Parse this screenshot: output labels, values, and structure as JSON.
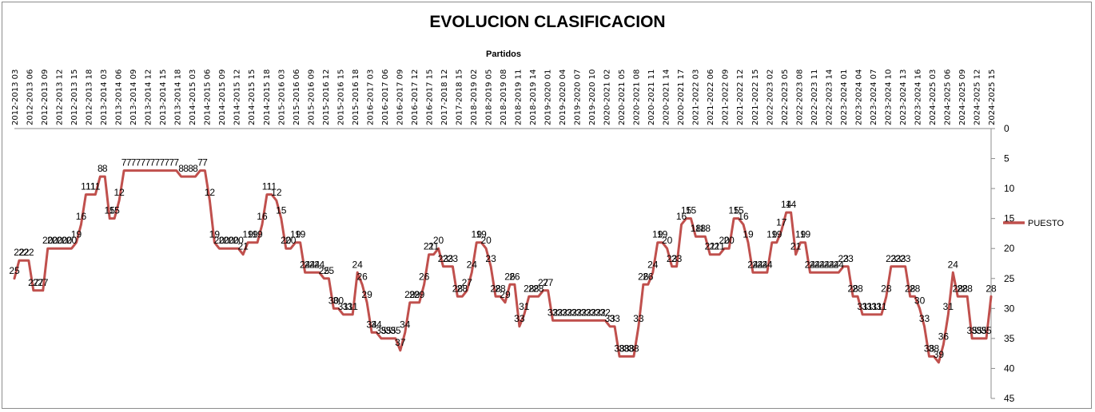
{
  "chart_data": {
    "type": "line",
    "title": "EVOLUCION CLASIFICACION",
    "xlabel": "Partidos",
    "ylabel": "",
    "ylim": [
      0,
      45
    ],
    "y_reversed": true,
    "y_ticks": [
      0,
      5,
      10,
      15,
      20,
      25,
      30,
      35,
      40,
      45
    ],
    "y_axis_position": "right",
    "x_axis_position": "top",
    "grid": false,
    "legend": "right",
    "series": [
      {
        "name": "PUESTO",
        "color": "#c0504d",
        "values": [
          25,
          22,
          22,
          22,
          27,
          27,
          27,
          20,
          20,
          20,
          20,
          20,
          20,
          19,
          16,
          11,
          11,
          11,
          8,
          8,
          15,
          15,
          12,
          7,
          7,
          7,
          7,
          7,
          7,
          7,
          7,
          7,
          7,
          7,
          7,
          8,
          8,
          8,
          8,
          7,
          7,
          12,
          19,
          20,
          20,
          20,
          20,
          20,
          21,
          19,
          19,
          19,
          16,
          11,
          11,
          12,
          15,
          20,
          20,
          19,
          19,
          24,
          24,
          24,
          24,
          25,
          25,
          30,
          30,
          31,
          31,
          31,
          24,
          26,
          29,
          34,
          34,
          35,
          35,
          35,
          35,
          37,
          34,
          29,
          29,
          29,
          26,
          21,
          21,
          20,
          23,
          23,
          23,
          28,
          28,
          27,
          24,
          19,
          19,
          20,
          23,
          28,
          28,
          29,
          26,
          26,
          33,
          31,
          28,
          28,
          28,
          27,
          27,
          32,
          32,
          32,
          32,
          32,
          32,
          32,
          32,
          32,
          32,
          32,
          32,
          33,
          33,
          38,
          38,
          38,
          38,
          33,
          26,
          26,
          24,
          19,
          19,
          20,
          23,
          23,
          16,
          15,
          15,
          18,
          18,
          18,
          21,
          21,
          21,
          20,
          20,
          15,
          15,
          16,
          19,
          24,
          24,
          24,
          24,
          19,
          19,
          17,
          14,
          14,
          21,
          19,
          19,
          24,
          24,
          24,
          24,
          24,
          24,
          24,
          23,
          23,
          28,
          28,
          31,
          31,
          31,
          31,
          31,
          28,
          23,
          23,
          23,
          23,
          28,
          28,
          30,
          33,
          38,
          38,
          39,
          36,
          31,
          24,
          28,
          28,
          28,
          35,
          35,
          35,
          35,
          28
        ]
      }
    ],
    "data_labels": [
      "25",
      "22",
      "22",
      "22",
      "27",
      "27",
      "27",
      "20",
      "20",
      "20",
      "20",
      "20",
      "20",
      "19",
      "16",
      "11",
      "11",
      "11",
      "8",
      "8",
      "15",
      "15",
      "12",
      "7",
      "7",
      "7",
      "7",
      "7",
      "7",
      "7",
      "7",
      "7",
      "7",
      "7",
      "7",
      "8",
      "8",
      "8",
      "8",
      "7",
      "7",
      "12",
      "19",
      "20",
      "20",
      "20",
      "20",
      "20",
      "21",
      "19",
      "19",
      "19",
      "16",
      "11",
      "11",
      "12",
      "15",
      "20",
      "20",
      "19",
      "19",
      "24",
      "24",
      "24",
      "24",
      "25",
      "25",
      "30",
      "30",
      "31",
      "31",
      "31",
      "24",
      "26",
      "29",
      "34",
      "34",
      "35",
      "35",
      "35",
      "35",
      "37",
      "34",
      "29",
      "29",
      "29",
      "26",
      "21",
      "21",
      "20",
      "23",
      "23",
      "23",
      "28",
      "28",
      "27",
      "24",
      "19",
      "19",
      "20",
      "23",
      "28",
      "28",
      "29",
      "26",
      "26",
      "33",
      "31",
      "28",
      "28",
      "28",
      "27",
      "27",
      "32",
      "32",
      "32",
      "32",
      "32",
      "32",
      "32",
      "32",
      "32",
      "32",
      "32",
      "32",
      "33",
      "33",
      "38",
      "38",
      "38",
      "38",
      "33",
      "26",
      "26",
      "24",
      "19",
      "19",
      "20",
      "23",
      "23",
      "16",
      "15",
      "15",
      "18",
      "18",
      "18",
      "21",
      "21",
      "21",
      "20",
      "20",
      "15",
      "15",
      "16",
      "19",
      "24",
      "24",
      "24",
      "24",
      "19",
      "19",
      "17",
      "14",
      "14",
      "21",
      "19",
      "19",
      "24",
      "24",
      "24",
      "24",
      "24",
      "24",
      "24",
      "23",
      "23",
      "28",
      "28",
      "31",
      "31",
      "31",
      "31",
      "31",
      "28",
      "23",
      "23",
      "23",
      "23",
      "28",
      "28",
      "30",
      "33",
      "38",
      "38",
      "39",
      "36",
      "31",
      "24",
      "28",
      "28",
      "28",
      "35",
      "35",
      "35",
      "35",
      "28"
    ],
    "x_tick_labels": [
      "2012-2013 03",
      "2012-2013 06",
      "2012-2013 09",
      "2012-2013 12",
      "2012-2013 15",
      "2012-2013 18",
      "2013-2014 03",
      "2013-2014 06",
      "2013-2014 09",
      "2013-2014 12",
      "2013-2014 15",
      "2013-2014 18",
      "2014-2015 03",
      "2014-2015 06",
      "2014-2015 09",
      "2014-2015 12",
      "2014-2015 15",
      "2014-2015 18",
      "2015-2016 03",
      "2015-2016 06",
      "2015-2016 09",
      "2015-2016 12",
      "2015-2016 15",
      "2015-2016 18",
      "2016-2017 03",
      "2016-2017 06",
      "2016-2017 09",
      "2016-2017 12",
      "2016-2017 15",
      "2017-2018 12",
      "2017-2018 15",
      "2018-2019 02",
      "2018-2019 05",
      "2018-2019 08",
      "2018-2019 11",
      "2018-2019 14",
      "2019-2020 01",
      "2019-2020 04",
      "2019-2020 07",
      "2019-2020 10",
      "2020-2021 02",
      "2020-2021 05",
      "2020-2021 08",
      "2020-2021 11",
      "2020-2021 14",
      "2020-2021 17",
      "2021-2022 03",
      "2021-2022 06",
      "2021-2022 09",
      "2021-2022 12",
      "2021-2022 15",
      "2022-2023 02",
      "2022-2023 05",
      "2022-2023 08",
      "2022-2023 11",
      "2022-2023 14",
      "2023-2024 01",
      "2023-2024 04",
      "2023-2024 07",
      "2023-2024 10",
      "2023-2024 13",
      "2023-2024 16",
      "2024-2025 03",
      "2024-2025 06",
      "2024-2025 09",
      "2024-2025 12",
      "2024-2025 15"
    ]
  }
}
